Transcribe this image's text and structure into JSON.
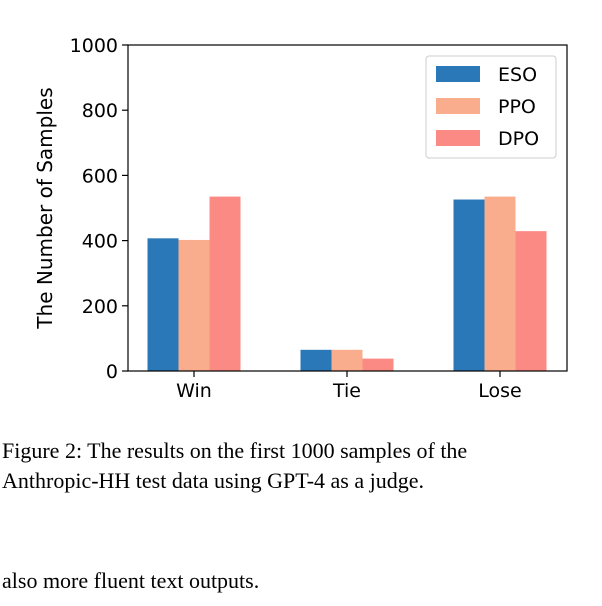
{
  "chart_data": {
    "type": "bar",
    "categories": [
      "Win",
      "Tie",
      "Lose"
    ],
    "series": [
      {
        "name": "ESO",
        "values": [
          407,
          65,
          526
        ],
        "color": "#2a78b8"
      },
      {
        "name": "PPO",
        "values": [
          402,
          65,
          535
        ],
        "color": "#f9ad8c"
      },
      {
        "name": "DPO",
        "values": [
          535,
          38,
          429
        ],
        "color": "#fb8a85"
      }
    ],
    "ylabel": "The Number of Samples",
    "xlabel": "",
    "ylim": [
      0,
      1000
    ],
    "yticks": [
      "0",
      "200",
      "400",
      "600",
      "800",
      "1000"
    ],
    "grid": false,
    "legend_position": "top-right"
  },
  "caption": {
    "line1": "Figure 2: The results on the first 1000 samples of the",
    "line2": "Anthropic-HH test data using GPT-4 as a judge."
  },
  "body_text": "also more fluent text outputs."
}
